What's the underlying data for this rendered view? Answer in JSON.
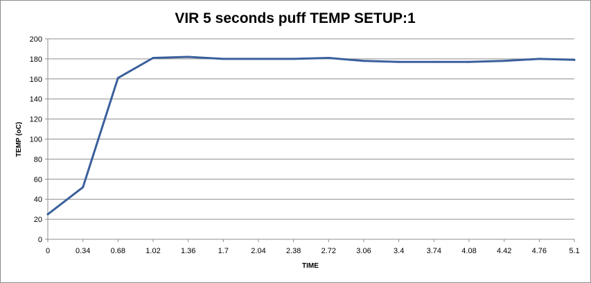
{
  "chart_data": {
    "type": "line",
    "title": "VIR 5 seconds puff TEMP SETUP:1",
    "xlabel": "TIME",
    "ylabel": "TEMP (oC)",
    "categories": [
      "0",
      "0.34",
      "0.68",
      "1.02",
      "1.36",
      "1.7",
      "2.04",
      "2.38",
      "2.72",
      "3.06",
      "3.4",
      "3.74",
      "4.08",
      "4.42",
      "4.76",
      "5.1"
    ],
    "x": [
      0,
      0.34,
      0.68,
      1.02,
      1.36,
      1.7,
      2.04,
      2.38,
      2.72,
      3.06,
      3.4,
      3.74,
      4.08,
      4.42,
      4.76,
      5.1
    ],
    "series": [
      {
        "color": "#3a5f9b",
        "values": [
          25,
          52,
          161,
          181,
          182,
          180,
          180,
          180,
          181,
          178,
          177,
          177,
          177,
          178,
          180,
          179
        ]
      }
    ],
    "ylim": [
      0,
      200
    ],
    "yticks": [
      0,
      20,
      40,
      60,
      80,
      100,
      120,
      140,
      160,
      180,
      200
    ],
    "grid": true,
    "legend": "none"
  }
}
